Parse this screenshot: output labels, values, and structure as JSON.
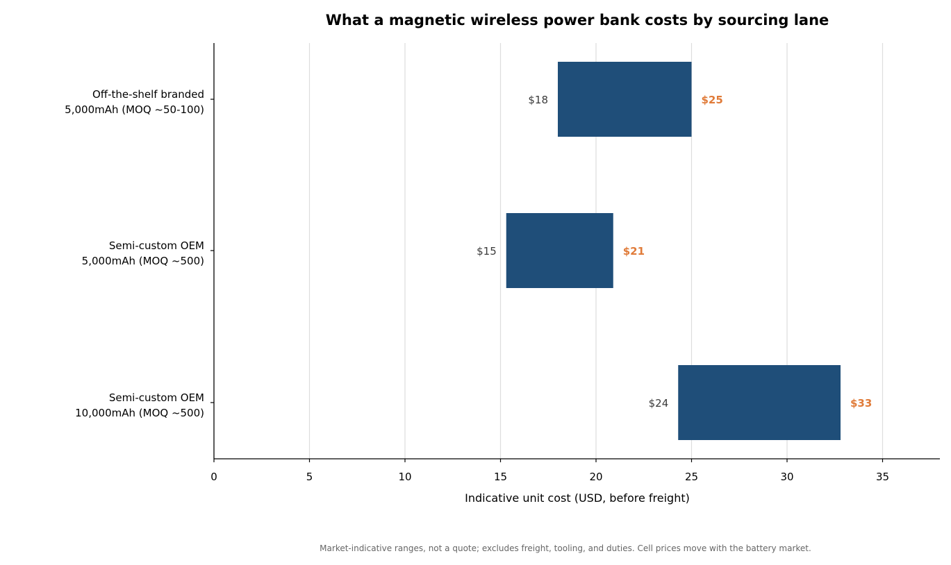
{
  "chart_data": {
    "type": "bar",
    "orientation": "horizontal-range",
    "title": "What a magnetic wireless power bank costs by sourcing lane",
    "xlabel": "Indicative unit cost (USD, before freight)",
    "ylabel": "",
    "xlim": [
      0,
      38
    ],
    "xticks": [
      0,
      5,
      10,
      15,
      20,
      25,
      30,
      35
    ],
    "grid": "vertical",
    "categories": [
      [
        "Off-the-shelf branded",
        "5,000mAh (MOQ ~50-100)"
      ],
      [
        "Semi-custom OEM",
        "5,000mAh (MOQ ~500)"
      ],
      [
        "Semi-custom OEM",
        "10,000mAh (MOQ ~500)"
      ]
    ],
    "ranges": [
      {
        "low": 18,
        "high": 25,
        "low_label": "$18",
        "high_label": "$25"
      },
      {
        "low": 15.3,
        "high": 20.9,
        "low_label": "$15",
        "high_label": "$21"
      },
      {
        "low": 24.3,
        "high": 32.8,
        "low_label": "$24",
        "high_label": "$33"
      }
    ],
    "footnote": "Market-indicative ranges, not a quote; excludes freight, tooling, and duties. Cell prices move with the battery market."
  },
  "colors": {
    "bar": "#1f4e79",
    "high_label": "#e07b39",
    "grid": "#dddddd",
    "axis": "#000000"
  }
}
